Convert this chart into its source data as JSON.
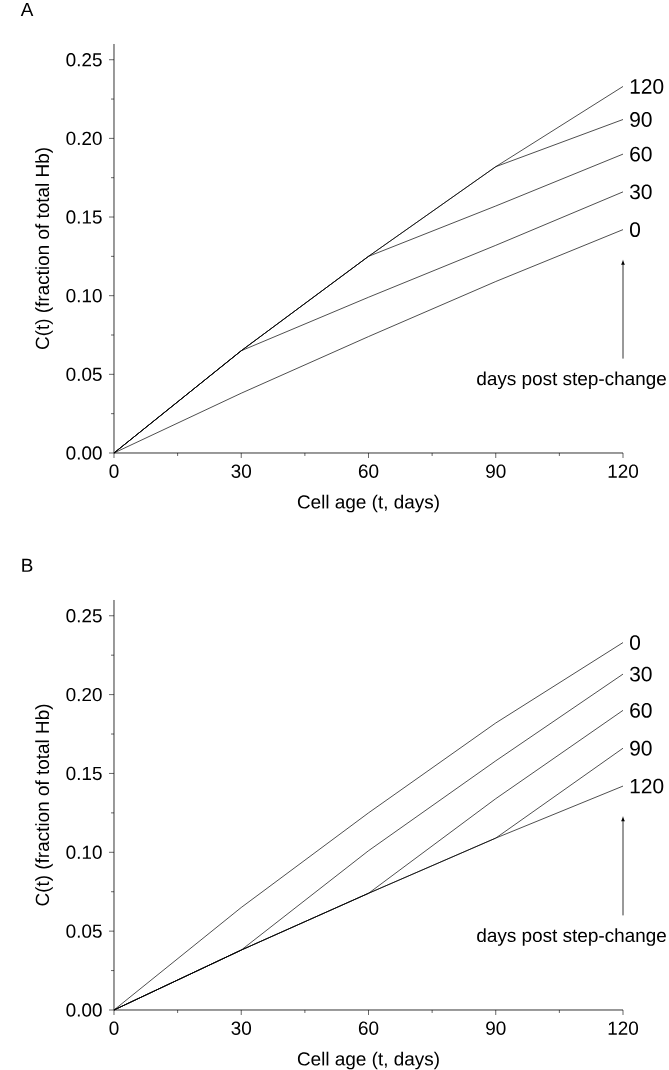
{
  "chart_data": [
    {
      "type": "line",
      "title": "A",
      "xlabel": "Cell age (t, days)",
      "ylabel": "C(t) (fraction of total Hb)",
      "x": [
        0,
        30,
        60,
        90,
        120
      ],
      "series": [
        {
          "name": "120",
          "color": "#000000",
          "values": [
            0,
            0.065,
            0.125,
            0.182,
            0.233
          ]
        },
        {
          "name": "90",
          "color": "#000000",
          "values": [
            0,
            0.065,
            0.125,
            0.182,
            0.212
          ]
        },
        {
          "name": "60",
          "color": "#000000",
          "values": [
            0,
            0.065,
            0.125,
            0.157,
            0.19
          ]
        },
        {
          "name": "30",
          "color": "#000000",
          "values": [
            0,
            0.065,
            0.099,
            0.132,
            0.166
          ]
        },
        {
          "name": "0",
          "color": "#000000",
          "values": [
            0,
            0.038,
            0.074,
            0.109,
            0.142
          ]
        }
      ],
      "annotations": [
        "days post step-change"
      ],
      "xlim": [
        0,
        120
      ],
      "ylim": [
        0,
        0.26
      ],
      "xticks": [
        0,
        {
          "value": 15,
          "label": null
        },
        30,
        {
          "value": 45,
          "label": null
        },
        60,
        {
          "value": 75,
          "label": null
        },
        90,
        {
          "value": 105,
          "label": null
        },
        120
      ],
      "yticks": [
        {
          "value": 0,
          "label": "0.00"
        },
        {
          "value": 0.025,
          "label": null
        },
        {
          "value": 0.05,
          "label": "0.05"
        },
        {
          "value": 0.075,
          "label": null
        },
        {
          "value": 0.1,
          "label": "0.10"
        },
        {
          "value": 0.125,
          "label": null
        },
        {
          "value": 0.15,
          "label": "0.15"
        },
        {
          "value": 0.175,
          "label": null
        },
        {
          "value": 0.2,
          "label": "0.20"
        },
        {
          "value": 0.225,
          "label": null
        },
        {
          "value": 0.25,
          "label": "0.25"
        }
      ],
      "marker": "none",
      "line_style": "solid"
    },
    {
      "type": "line",
      "title": "B",
      "xlabel": "Cell age (t, days)",
      "ylabel": "C(t) (fraction of total Hb)",
      "x": [
        0,
        30,
        60,
        90,
        120
      ],
      "series": [
        {
          "name": "0",
          "color": "#000000",
          "values": [
            0,
            0.065,
            0.125,
            0.182,
            0.233
          ]
        },
        {
          "name": "30",
          "color": "#000000",
          "values": [
            0,
            0.038,
            0.101,
            0.158,
            0.213
          ]
        },
        {
          "name": "60",
          "color": "#000000",
          "values": [
            0,
            0.038,
            0.074,
            0.134,
            0.19
          ]
        },
        {
          "name": "90",
          "color": "#000000",
          "values": [
            0,
            0.038,
            0.074,
            0.109,
            0.166
          ]
        },
        {
          "name": "120",
          "color": "#000000",
          "values": [
            0,
            0.038,
            0.074,
            0.109,
            0.142
          ]
        }
      ],
      "annotations": [
        "days post step-change"
      ],
      "xlim": [
        0,
        120
      ],
      "ylim": [
        0,
        0.26
      ],
      "xticks": [
        0,
        {
          "value": 15,
          "label": null
        },
        30,
        {
          "value": 45,
          "label": null
        },
        60,
        {
          "value": 75,
          "label": null
        },
        90,
        {
          "value": 105,
          "label": null
        },
        120
      ],
      "yticks": [
        {
          "value": 0,
          "label": "0.00"
        },
        {
          "value": 0.025,
          "label": null
        },
        {
          "value": 0.05,
          "label": "0.05"
        },
        {
          "value": 0.075,
          "label": null
        },
        {
          "value": 0.1,
          "label": "0.10"
        },
        {
          "value": 0.125,
          "label": null
        },
        {
          "value": 0.15,
          "label": "0.15"
        },
        {
          "value": 0.175,
          "label": null
        },
        {
          "value": 0.2,
          "label": "0.20"
        },
        {
          "value": 0.225,
          "label": null
        },
        {
          "value": 0.25,
          "label": "0.25"
        }
      ],
      "marker": "none",
      "line_style": "solid"
    }
  ]
}
